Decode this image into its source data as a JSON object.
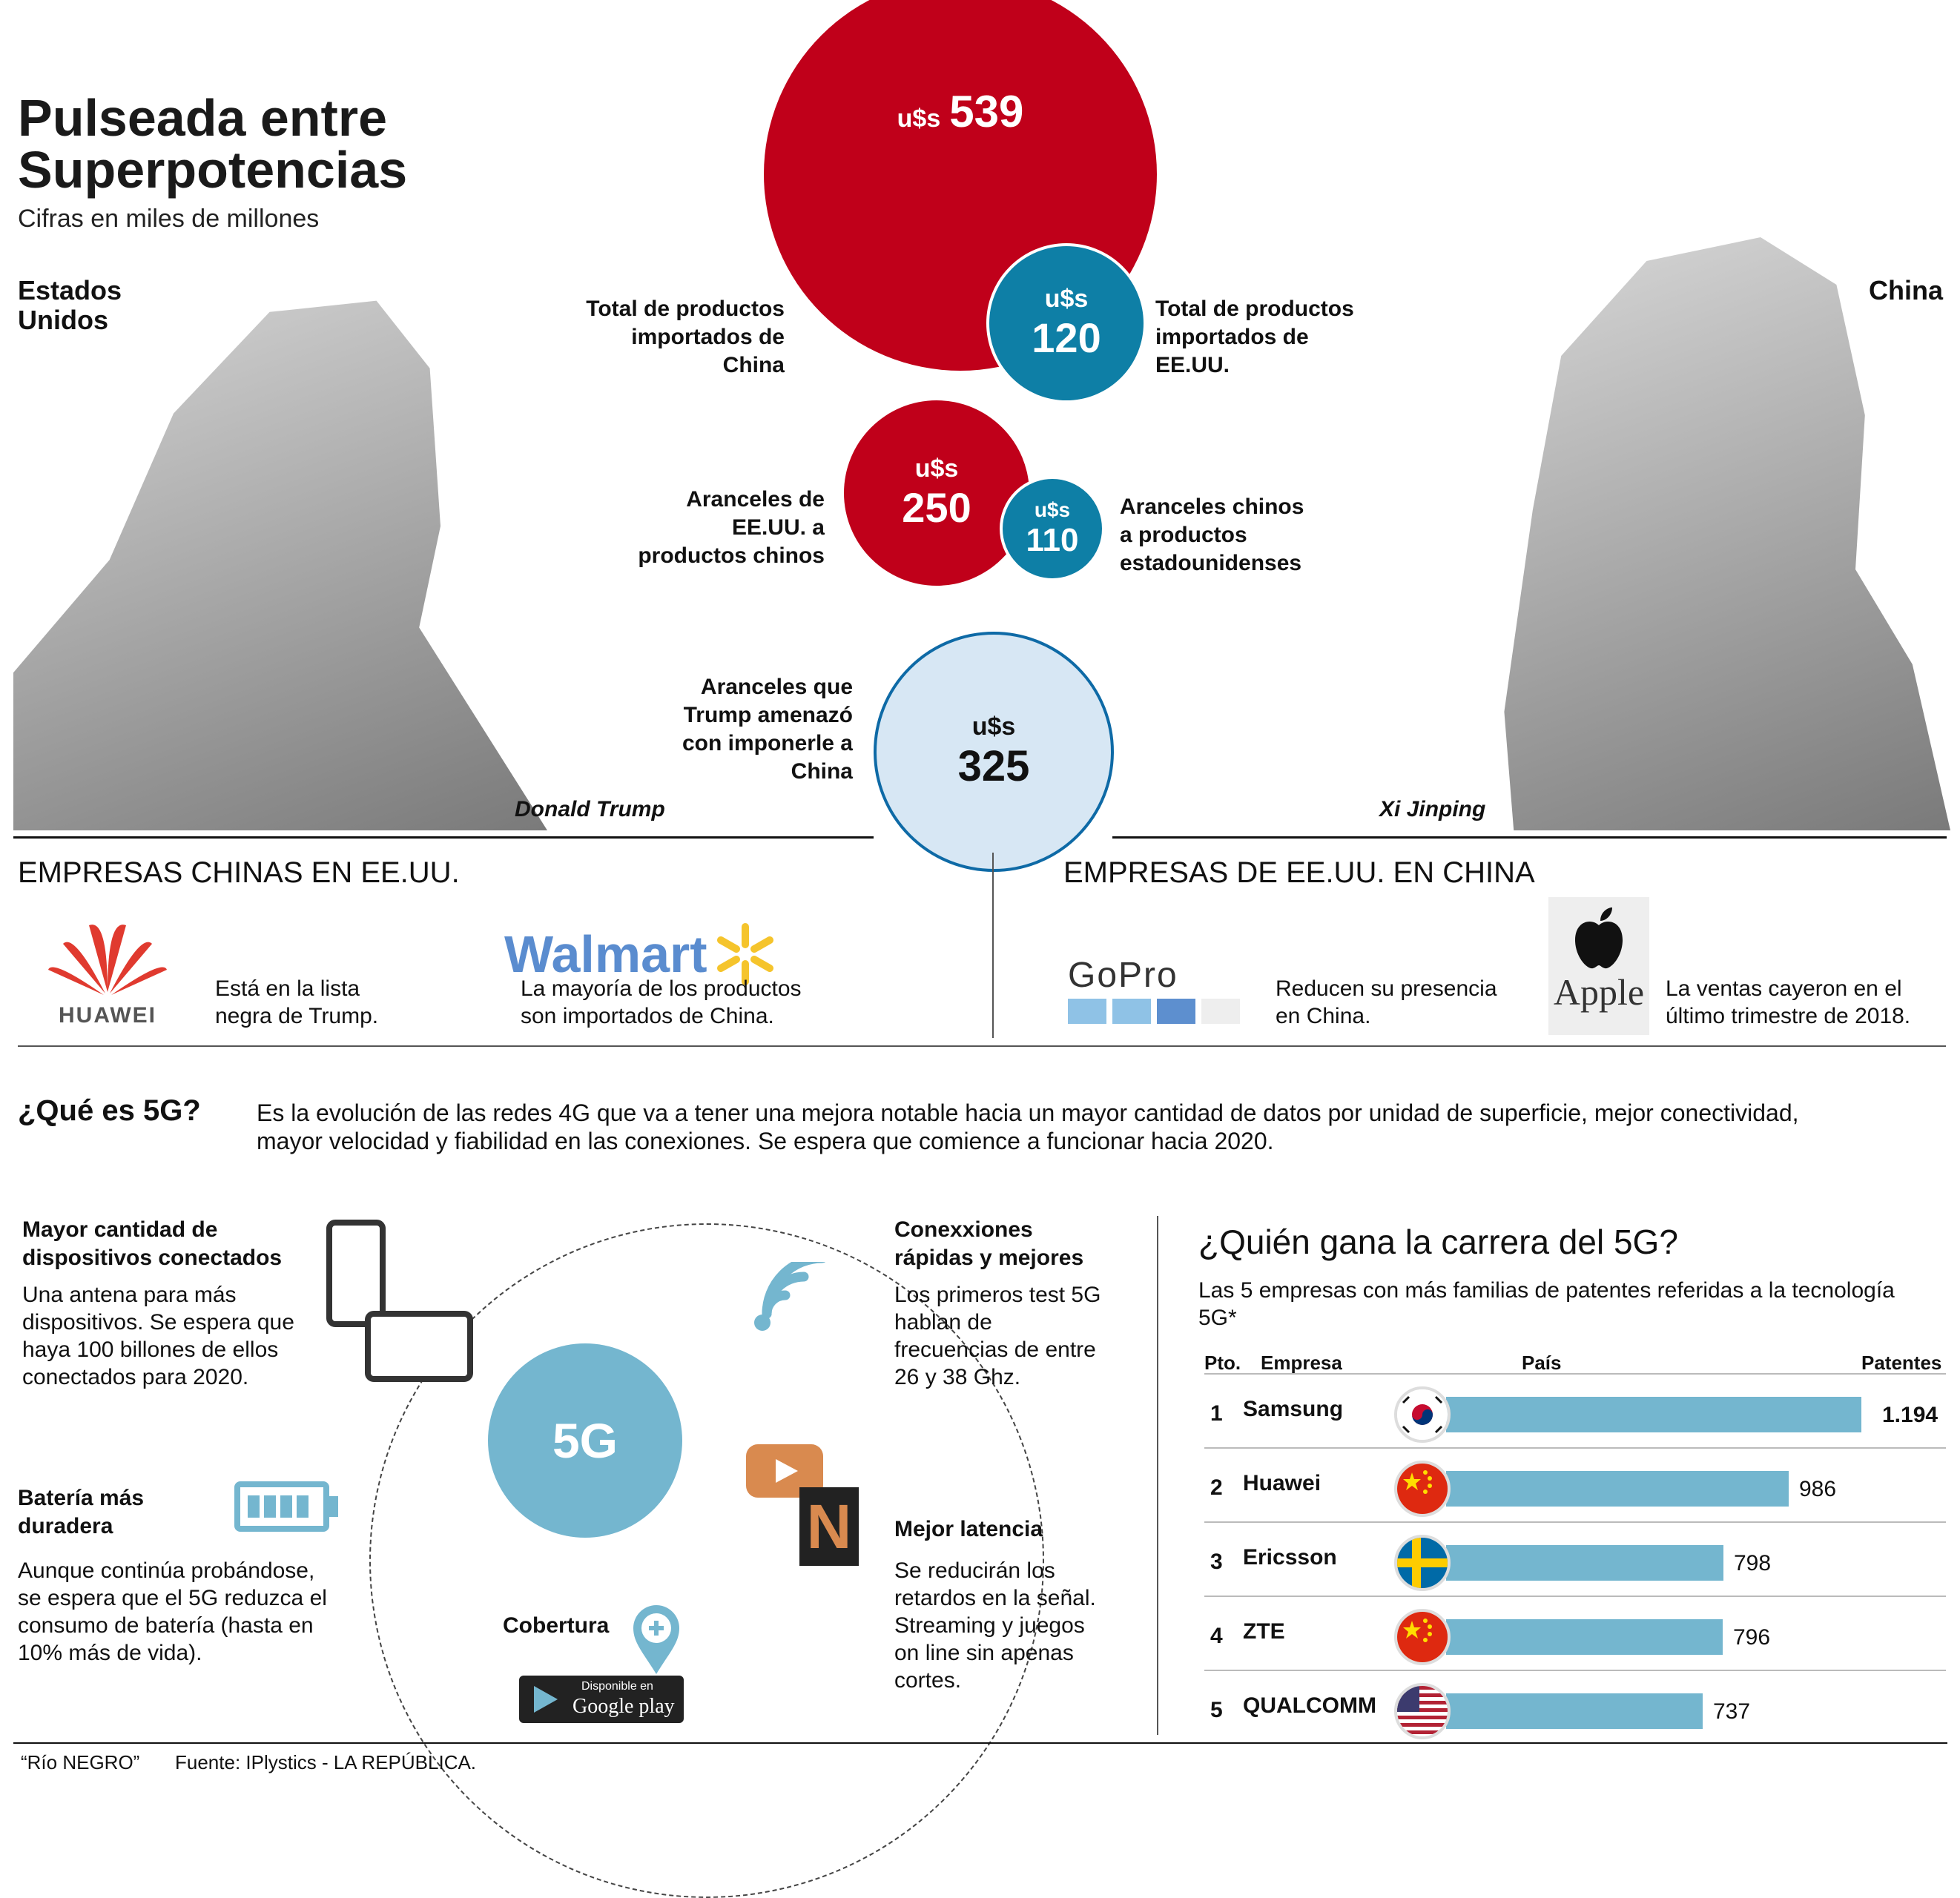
{
  "header": {
    "title_line1": "Pulseada entre",
    "title_line2": "Superpotencias",
    "subtitle": "Cifras en miles de millones"
  },
  "countries": {
    "left": "Estados Unidos",
    "right": "China"
  },
  "people": {
    "left": "Donald Trump",
    "right": "Xi Jinping"
  },
  "bubbles": {
    "currency": "u$s",
    "imports_from_china": {
      "value": "539",
      "label": "Total de productos importados de China"
    },
    "imports_from_us": {
      "value": "120",
      "label": "Total de productos importados de EE.UU."
    },
    "us_tariffs": {
      "value": "250",
      "label": "Aranceles de EE.UU. a productos chinos"
    },
    "china_tariffs": {
      "value": "110",
      "label": "Aranceles chinos a productos estadounidenses"
    },
    "threatened": {
      "value": "325",
      "label": "Aranceles que Trump amenazó con imponerle a China"
    }
  },
  "companies": {
    "left_title": "EMPRESAS CHINAS EN EE.UU.",
    "right_title": "EMPRESAS DE EE.UU. EN CHINA",
    "huawei": {
      "logo": "HUAWEI",
      "text": "Está en la lista negra de Trump."
    },
    "walmart": {
      "logo": "Walmart",
      "text": "La mayoría de los productos son importados de China."
    },
    "gopro": {
      "logo": "GoPro",
      "text": "Reducen su presencia en China."
    },
    "apple": {
      "logo": "Apple",
      "text": "La ventas cayeron en el último  trimestre de 2018."
    }
  },
  "what5g": {
    "title": "¿Qué es 5G?",
    "text": "Es la evolución de las redes 4G que va a tener una mejora notable hacia un mayor cantidad de datos por unidad de superficie, mejor conectividad, mayor velocidad y fiabilidad en las conexiones. Se espera que comience a funcionar hacia 2020."
  },
  "features": {
    "center": "5G",
    "devices": {
      "title": "Mayor cantidad de dispositivos conectados",
      "text": "Una antena para más dispositivos. Se espera que haya 100 billones de ellos conectados para 2020."
    },
    "battery": {
      "title": "Batería más duradera",
      "text": "Aunque continúa probándose, se espera que el 5G reduzca el consumo de batería (hasta en 10% más de vida)."
    },
    "speed": {
      "title": "Conexxiones rápidas y mejores",
      "text": "Los primeros test 5G hablan de frecuencias de entre 26 y 38 Ghz."
    },
    "latency": {
      "title": "Mejor latencia",
      "text": "Se reducirán los retardos en la señal. Streaming y juegos on line sin apenas cortes."
    },
    "coverage": {
      "title": "Cobertura"
    },
    "store": {
      "small": "Disponible en",
      "big": "Google play"
    }
  },
  "race": {
    "title": "¿Quién gana la carrera del 5G?",
    "subtitle": "Las 5 empresas con más familias de patentes referidas a la tecnología 5G*",
    "headers": {
      "pos": "Pto.",
      "company": "Empresa",
      "country": "País",
      "patents": "Patentes"
    },
    "rows": [
      {
        "pos": "1",
        "company": "Samsung",
        "patents": "1.194",
        "value": 1194,
        "flag": "south-korea-flag-icon"
      },
      {
        "pos": "2",
        "company": "Huawei",
        "patents": "986",
        "value": 986,
        "flag": "china-flag-icon"
      },
      {
        "pos": "3",
        "company": "Ericsson",
        "patents": "798",
        "value": 798,
        "flag": "sweden-flag-icon"
      },
      {
        "pos": "4",
        "company": "ZTE",
        "patents": "796",
        "value": 796,
        "flag": "china-flag-icon"
      },
      {
        "pos": "5",
        "company": "QUALCOMM",
        "patents": "737",
        "value": 737,
        "flag": "usa-flag-icon"
      }
    ]
  },
  "footer": {
    "left": "“Río NEGRO”",
    "source": "Fuente: IPlystics - LA REPÚBLICA."
  },
  "colors": {
    "red": "#c0001a",
    "blue": "#0e7fa6",
    "lightblue": "#d7e7f4",
    "barblue": "#74b6cf"
  }
}
